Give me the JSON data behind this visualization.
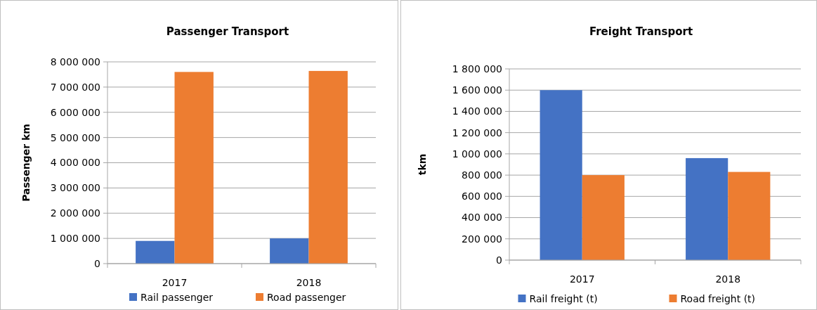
{
  "chart_data": [
    {
      "type": "bar",
      "title": "Passenger Transport",
      "ylabel": "Passenger km",
      "categories": [
        "2017",
        "2018"
      ],
      "series": [
        {
          "name": "Rail passenger",
          "color": "#4472c4",
          "values": [
            900000,
            1000000
          ]
        },
        {
          "name": "Road passenger",
          "color": "#ed7d31",
          "values": [
            7600000,
            7640000
          ]
        }
      ],
      "ylim": [
        0,
        8000000
      ],
      "yticks": [
        0,
        {
          "value": 1000000,
          "label": "1 000 000"
        },
        {
          "value": 2000000,
          "label": "2 000 000"
        },
        {
          "value": 3000000,
          "label": "3 000 000"
        },
        {
          "value": 4000000,
          "label": "4 000 000"
        },
        {
          "value": 5000000,
          "label": "5 000 000"
        },
        {
          "value": 6000000,
          "label": "6 000 000"
        },
        {
          "value": 7000000,
          "label": "7 000 000"
        },
        {
          "value": 8000000,
          "label": "8 000 000"
        }
      ],
      "grid": "y",
      "legend": "bottom"
    },
    {
      "type": "bar",
      "title": "Freight Transport",
      "ylabel": "tkm",
      "categories": [
        "2017",
        "2018"
      ],
      "series": [
        {
          "name": "Rail freight (t)",
          "color": "#4472c4",
          "values": [
            1600000,
            960000
          ]
        },
        {
          "name": "Road freight (t)",
          "color": "#ed7d31",
          "values": [
            800000,
            830000
          ]
        }
      ],
      "ylim": [
        0,
        1800000
      ],
      "yticks": [
        0,
        {
          "value": 200000,
          "label": "200 000"
        },
        {
          "value": 400000,
          "label": "400 000"
        },
        {
          "value": 600000,
          "label": "600 000"
        },
        {
          "value": 800000,
          "label": "800 000"
        },
        {
          "value": 1000000,
          "label": "1 000 000"
        },
        {
          "value": 1200000,
          "label": "1 200 000"
        },
        {
          "value": 1400000,
          "label": "1 400 000"
        },
        {
          "value": 1600000,
          "label": "1 600 000"
        },
        {
          "value": 1800000,
          "label": "1 800 000"
        }
      ],
      "grid": "y",
      "legend": "bottom"
    }
  ]
}
